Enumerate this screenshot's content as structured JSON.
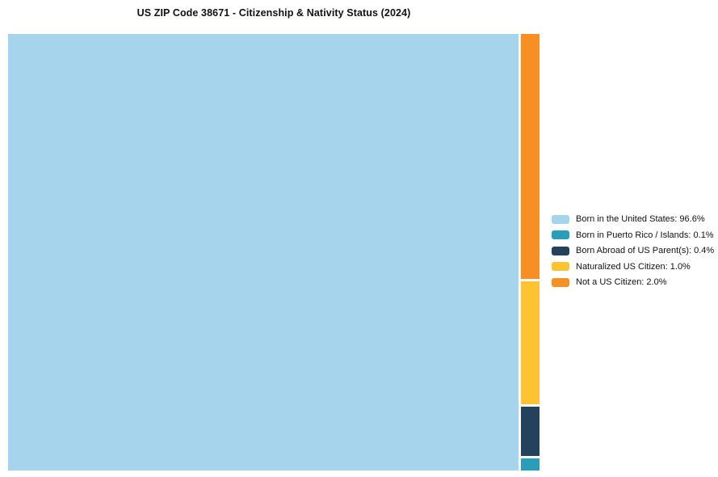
{
  "title": "US ZIP Code 38671 - Citizenship &amp; Nativity Status (2024)",
  "chart_data": {
    "type": "treemap",
    "title": "US ZIP Code 38671 - Citizenship & Nativity Status (2024)",
    "categories": [
      "Born in the United States",
      "Born in Puerto Rico / Islands",
      "Born Abroad of US Parent(s)",
      "Naturalized US Citizen",
      "Not a US Citizen"
    ],
    "values": [
      96.6,
      0.1,
      0.4,
      1.0,
      2.0
    ],
    "unit": "%",
    "colors": [
      "#a6d4ec",
      "#2a9db8",
      "#24425c",
      "#fdc331",
      "#f78f22"
    ],
    "main_category": "Born in the United States",
    "side_order": [
      "Not a US Citizen",
      "Naturalized US Citizen",
      "Born Abroad of US Parent(s)",
      "Born in Puerto Rico / Islands"
    ],
    "legend_position": "right",
    "legend": [
      {
        "label": "Born in the United States: 96.6%",
        "color": "#a6d4ec"
      },
      {
        "label": "Born in Puerto Rico / Islands: 0.1%",
        "color": "#2a9db8"
      },
      {
        "label": "Born Abroad of US Parent(s): 0.4%",
        "color": "#24425c"
      },
      {
        "label": "Naturalized US Citizen: 1.0%",
        "color": "#fdc331"
      },
      {
        "label": "Not a US Citizen: 2.0%",
        "color": "#f78f22"
      }
    ]
  }
}
